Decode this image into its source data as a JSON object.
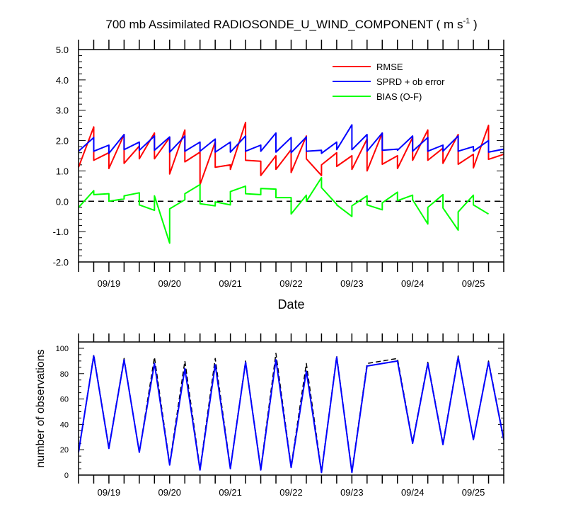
{
  "title": {
    "main": "700 mb Assimilated RADIOSONDE_U_WIND_COMPONENT ( m s",
    "exp": "-1",
    "tail": " )"
  },
  "chart_data": [
    {
      "type": "line",
      "xlabel": "Date",
      "ylabel": "",
      "ylim": [
        -2.0,
        5.0
      ],
      "xlim": [
        0.0,
        7.0
      ],
      "y_ticks": [
        "-2.0",
        "-1.0",
        "0.0",
        "1.0",
        "2.0",
        "3.0",
        "4.0",
        "5.0"
      ],
      "x_tick_labels": [
        {
          "value": 0.5,
          "label": "09/19"
        },
        {
          "value": 1.5,
          "label": "09/20"
        },
        {
          "value": 2.5,
          "label": "09/21"
        },
        {
          "value": 3.5,
          "label": "09/22"
        },
        {
          "value": 4.5,
          "label": "09/23"
        },
        {
          "value": 5.5,
          "label": "09/24"
        },
        {
          "value": 6.5,
          "label": "09/25"
        }
      ],
      "legend_position": "top-right",
      "reference_line": {
        "y": 0.0,
        "style": "dashed"
      },
      "series": [
        {
          "name": "RMSE",
          "color": "#ff0000",
          "points": [
            [
              0.0,
              1.12
            ],
            [
              0.25,
              2.45
            ],
            [
              0.25,
              1.35
            ],
            [
              0.5,
              1.6
            ],
            [
              0.5,
              1.08
            ],
            [
              0.75,
              2.2
            ],
            [
              0.75,
              1.25
            ],
            [
              1.0,
              1.82
            ],
            [
              1.0,
              1.4
            ],
            [
              1.25,
              2.25
            ],
            [
              1.25,
              1.4
            ],
            [
              1.5,
              2.1
            ],
            [
              1.5,
              0.9
            ],
            [
              1.75,
              2.35
            ],
            [
              1.75,
              1.3
            ],
            [
              2.0,
              1.62
            ],
            [
              2.0,
              0.55
            ],
            [
              2.25,
              1.95
            ],
            [
              2.25,
              1.12
            ],
            [
              2.5,
              1.2
            ],
            [
              2.5,
              1.05
            ],
            [
              2.75,
              2.6
            ],
            [
              2.75,
              1.35
            ],
            [
              3.0,
              1.32
            ],
            [
              3.0,
              0.85
            ],
            [
              3.25,
              1.5
            ],
            [
              3.25,
              1.05
            ],
            [
              3.5,
              1.7
            ],
            [
              3.5,
              0.95
            ],
            [
              3.75,
              2.15
            ],
            [
              3.75,
              1.4
            ],
            [
              4.0,
              0.85
            ],
            [
              4.0,
              1.2
            ],
            [
              4.25,
              1.6
            ],
            [
              4.25,
              1.15
            ],
            [
              4.5,
              1.5
            ],
            [
              4.5,
              1.05
            ],
            [
              4.75,
              2.05
            ],
            [
              4.75,
              1.0
            ],
            [
              5.0,
              2.25
            ],
            [
              5.0,
              1.22
            ],
            [
              5.25,
              1.5
            ],
            [
              5.25,
              1.08
            ],
            [
              5.5,
              2.1
            ],
            [
              5.5,
              1.35
            ],
            [
              5.75,
              2.35
            ],
            [
              5.75,
              1.35
            ],
            [
              6.0,
              1.75
            ],
            [
              6.0,
              1.25
            ],
            [
              6.25,
              2.2
            ],
            [
              6.25,
              1.22
            ],
            [
              6.5,
              1.55
            ],
            [
              6.5,
              1.1
            ],
            [
              6.75,
              2.5
            ],
            [
              6.75,
              1.38
            ],
            [
              7.0,
              1.55
            ]
          ]
        },
        {
          "name": "SPRD + ob error",
          "color": "#0000ff",
          "points": [
            [
              0.0,
              1.65
            ],
            [
              0.25,
              2.1
            ],
            [
              0.25,
              1.65
            ],
            [
              0.5,
              1.85
            ],
            [
              0.5,
              1.58
            ],
            [
              0.75,
              2.2
            ],
            [
              0.75,
              1.7
            ],
            [
              1.0,
              1.95
            ],
            [
              1.0,
              1.68
            ],
            [
              1.25,
              2.15
            ],
            [
              1.25,
              1.68
            ],
            [
              1.5,
              2.12
            ],
            [
              1.5,
              1.62
            ],
            [
              1.75,
              2.15
            ],
            [
              1.75,
              1.65
            ],
            [
              2.0,
              1.95
            ],
            [
              2.0,
              1.65
            ],
            [
              2.25,
              2.05
            ],
            [
              2.25,
              1.62
            ],
            [
              2.5,
              1.95
            ],
            [
              2.5,
              1.62
            ],
            [
              2.75,
              2.15
            ],
            [
              2.75,
              1.65
            ],
            [
              3.0,
              1.85
            ],
            [
              3.0,
              1.65
            ],
            [
              3.25,
              2.25
            ],
            [
              3.25,
              1.62
            ],
            [
              3.5,
              2.1
            ],
            [
              3.5,
              1.6
            ],
            [
              3.75,
              2.12
            ],
            [
              3.75,
              1.65
            ],
            [
              4.0,
              1.68
            ],
            [
              4.0,
              1.58
            ],
            [
              4.25,
              1.95
            ],
            [
              4.25,
              1.7
            ],
            [
              4.5,
              2.52
            ],
            [
              4.5,
              1.7
            ],
            [
              4.75,
              2.2
            ],
            [
              4.75,
              1.65
            ],
            [
              5.0,
              2.25
            ],
            [
              5.0,
              1.68
            ],
            [
              5.25,
              1.72
            ],
            [
              5.25,
              1.68
            ],
            [
              5.5,
              2.15
            ],
            [
              5.5,
              1.65
            ],
            [
              5.75,
              2.1
            ],
            [
              5.75,
              1.65
            ],
            [
              6.0,
              1.85
            ],
            [
              6.0,
              1.65
            ],
            [
              6.25,
              2.15
            ],
            [
              6.25,
              1.65
            ],
            [
              6.5,
              1.8
            ],
            [
              6.5,
              1.65
            ],
            [
              6.75,
              2.0
            ],
            [
              6.75,
              1.62
            ],
            [
              7.0,
              1.72
            ]
          ]
        },
        {
          "name": "BIAS (O-F)",
          "color": "#00ff00",
          "points": [
            [
              0.0,
              -0.2
            ],
            [
              0.25,
              0.35
            ],
            [
              0.25,
              0.22
            ],
            [
              0.5,
              0.25
            ],
            [
              0.5,
              0.0
            ],
            [
              0.75,
              0.08
            ],
            [
              0.75,
              0.18
            ],
            [
              1.0,
              0.28
            ],
            [
              1.0,
              -0.12
            ],
            [
              1.25,
              -0.3
            ],
            [
              1.25,
              0.18
            ],
            [
              1.5,
              -1.38
            ],
            [
              1.5,
              -0.25
            ],
            [
              1.75,
              0.05
            ],
            [
              1.75,
              0.25
            ],
            [
              2.0,
              0.55
            ],
            [
              2.0,
              -0.08
            ],
            [
              2.25,
              -0.15
            ],
            [
              2.25,
              -0.02
            ],
            [
              2.5,
              -0.12
            ],
            [
              2.5,
              0.32
            ],
            [
              2.75,
              0.5
            ],
            [
              2.75,
              0.25
            ],
            [
              3.0,
              0.22
            ],
            [
              3.0,
              0.42
            ],
            [
              3.25,
              0.4
            ],
            [
              3.25,
              0.12
            ],
            [
              3.5,
              0.12
            ],
            [
              3.5,
              -0.42
            ],
            [
              3.75,
              0.2
            ],
            [
              3.75,
              0.0
            ],
            [
              4.0,
              0.78
            ],
            [
              4.0,
              0.45
            ],
            [
              4.25,
              -0.1
            ],
            [
              4.25,
              -0.12
            ],
            [
              4.5,
              -0.5
            ],
            [
              4.5,
              -0.15
            ],
            [
              4.75,
              0.18
            ],
            [
              4.75,
              -0.12
            ],
            [
              5.0,
              -0.28
            ],
            [
              5.0,
              -0.05
            ],
            [
              5.25,
              0.3
            ],
            [
              5.25,
              0.02
            ],
            [
              5.5,
              0.2
            ],
            [
              5.5,
              0.05
            ],
            [
              5.75,
              -0.75
            ],
            [
              5.75,
              -0.2
            ],
            [
              6.0,
              0.22
            ],
            [
              6.0,
              -0.22
            ],
            [
              6.25,
              -0.95
            ],
            [
              6.25,
              -0.35
            ],
            [
              6.5,
              0.2
            ],
            [
              6.5,
              -0.12
            ],
            [
              6.75,
              -0.42
            ]
          ]
        }
      ]
    },
    {
      "type": "line",
      "xlabel": "",
      "ylabel": "number of observations",
      "ylim": [
        0,
        105
      ],
      "xlim": [
        0.0,
        7.0
      ],
      "y_ticks": [
        "0",
        "20",
        "40",
        "60",
        "80",
        "100"
      ],
      "x_tick_labels": [
        {
          "value": 0.5,
          "label": "09/19"
        },
        {
          "value": 1.5,
          "label": "09/20"
        },
        {
          "value": 2.5,
          "label": "09/21"
        },
        {
          "value": 3.5,
          "label": "09/22"
        },
        {
          "value": 4.5,
          "label": "09/23"
        },
        {
          "value": 5.5,
          "label": "09/24"
        },
        {
          "value": 6.5,
          "label": "09/25"
        }
      ],
      "series": [
        {
          "style": "dashed",
          "color": "#000000",
          "points": [
            [
              0.0,
              18
            ],
            [
              0.25,
              95
            ],
            [
              0.5,
              22
            ],
            [
              0.75,
              92
            ],
            [
              1.0,
              18
            ],
            [
              1.25,
              93
            ],
            [
              1.5,
              9
            ],
            [
              1.75,
              90
            ],
            [
              2.0,
              5
            ],
            [
              2.25,
              92
            ],
            [
              2.5,
              6
            ],
            [
              2.75,
              90
            ],
            [
              3.0,
              5
            ],
            [
              3.25,
              96
            ],
            [
              3.5,
              7
            ],
            [
              3.75,
              88
            ],
            [
              4.0,
              3
            ],
            [
              4.25,
              94
            ],
            [
              4.5,
              3
            ],
            [
              4.75,
              88
            ],
            [
              5.25,
              92
            ],
            [
              5.5,
              26
            ],
            [
              5.75,
              89
            ],
            [
              6.0,
              25
            ],
            [
              6.25,
              94
            ],
            [
              6.5,
              28
            ],
            [
              6.75,
              90
            ],
            [
              7.0,
              29
            ]
          ]
        },
        {
          "style": "solid",
          "color": "#0000ff",
          "points": [
            [
              0.0,
              18
            ],
            [
              0.25,
              94
            ],
            [
              0.5,
              21
            ],
            [
              0.75,
              91
            ],
            [
              1.0,
              18
            ],
            [
              1.25,
              88
            ],
            [
              1.5,
              8
            ],
            [
              1.75,
              84
            ],
            [
              2.0,
              4
            ],
            [
              2.25,
              87
            ],
            [
              2.5,
              5
            ],
            [
              2.75,
              89
            ],
            [
              3.0,
              4
            ],
            [
              3.25,
              91
            ],
            [
              3.5,
              6
            ],
            [
              3.75,
              82
            ],
            [
              4.0,
              2
            ],
            [
              4.25,
              93
            ],
            [
              4.5,
              2
            ],
            [
              4.75,
              86
            ],
            [
              5.25,
              90
            ],
            [
              5.5,
              25
            ],
            [
              5.75,
              88
            ],
            [
              6.0,
              24
            ],
            [
              6.25,
              93
            ],
            [
              6.5,
              28
            ],
            [
              6.75,
              89
            ],
            [
              7.0,
              28
            ]
          ]
        }
      ]
    }
  ]
}
